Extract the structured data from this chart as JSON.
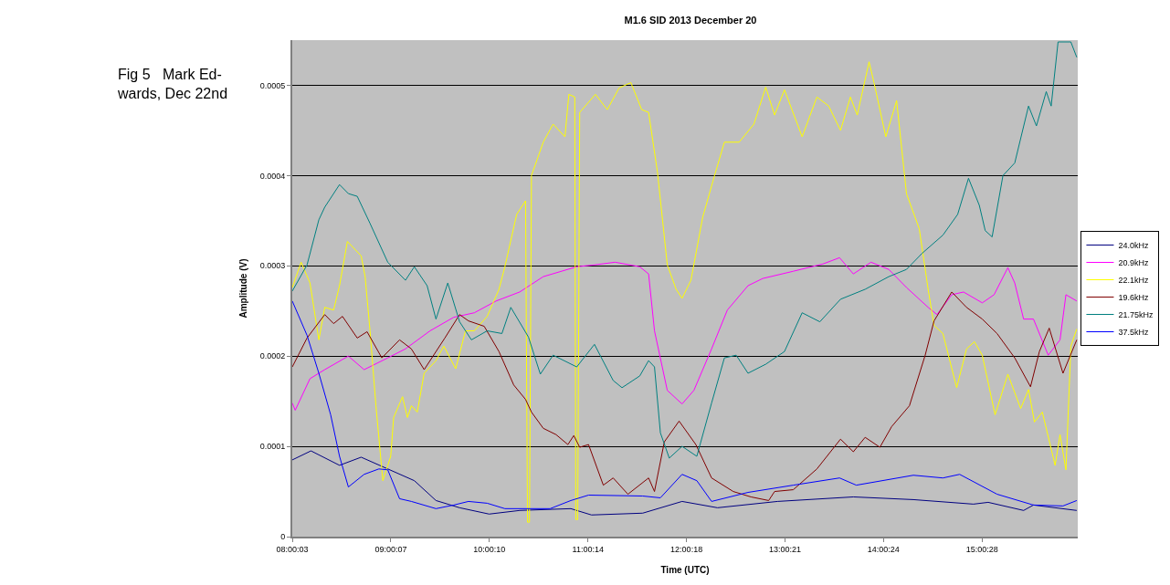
{
  "chart_data": {
    "type": "line",
    "title": "M1.6 SID 2013 December 20",
    "xlabel": "Time (UTC)",
    "ylabel": "Amplitude (V)",
    "annotations": [
      "Fig 5   Mark Ed-\nwards, Dec 22nd"
    ],
    "xlim": [
      8.0,
      15.98
    ],
    "ylim": [
      0,
      0.00055
    ],
    "xticks": [
      {
        "value": 8.0008,
        "label": "08:00:03"
      },
      {
        "value": 9.0019,
        "label": "09:00:07"
      },
      {
        "value": 10.0028,
        "label": "10:00:10"
      },
      {
        "value": 11.0039,
        "label": "11:00:14"
      },
      {
        "value": 12.005,
        "label": "12:00:18"
      },
      {
        "value": 13.0058,
        "label": "13:00:21"
      },
      {
        "value": 14.0067,
        "label": "14:00:24"
      },
      {
        "value": 15.0078,
        "label": "15:00:28"
      }
    ],
    "yticks": [
      0,
      0.0001,
      0.0002,
      0.0003,
      0.0004,
      0.0005
    ],
    "grid": "y",
    "legend": "right",
    "marker": "none",
    "line_style": "solid",
    "series": [
      {
        "name": "24.0kHz",
        "color": "#000080",
        "x": [
          8.0,
          8.19,
          8.48,
          8.7,
          8.97,
          9.24,
          9.46,
          9.7,
          10.0,
          10.31,
          10.83,
          11.04,
          11.56,
          11.96,
          12.32,
          12.93,
          13.7,
          14.31,
          14.92,
          15.07,
          15.43,
          15.53,
          15.97
        ],
        "values": [
          8.5e-05,
          9.5e-05,
          7.9e-05,
          8.8e-05,
          7.5e-05,
          6.2e-05,
          4e-05,
          3.2e-05,
          2.5e-05,
          2.9e-05,
          3.1e-05,
          2.4e-05,
          2.6e-05,
          3.9e-05,
          3.2e-05,
          3.9e-05,
          4.4e-05,
          4.1e-05,
          3.6e-05,
          3.8e-05,
          2.9e-05,
          3.5e-05,
          2.9e-05
        ]
      },
      {
        "name": "20.9kHz",
        "color": "#ff00ff",
        "x": [
          8.0,
          8.03,
          8.18,
          8.33,
          8.57,
          8.73,
          8.97,
          9.15,
          9.4,
          9.64,
          9.85,
          10.07,
          10.31,
          10.55,
          10.89,
          11.07,
          11.28,
          11.53,
          11.62,
          11.68,
          11.81,
          11.96,
          12.08,
          12.26,
          12.42,
          12.63,
          12.78,
          13.09,
          13.39,
          13.56,
          13.7,
          13.88,
          14.06,
          14.24,
          14.46,
          14.55,
          14.7,
          14.82,
          15.01,
          15.13,
          15.27,
          15.34,
          15.43,
          15.53,
          15.68,
          15.8,
          15.86,
          15.97
        ],
        "values": [
          0.000148,
          0.00014,
          0.000175,
          0.000185,
          0.0002,
          0.000185,
          0.000198,
          0.000208,
          0.000228,
          0.000243,
          0.000248,
          0.000261,
          0.000271,
          0.000288,
          0.000299,
          0.000301,
          0.000304,
          0.000299,
          0.000291,
          0.000228,
          0.000162,
          0.000147,
          0.000162,
          0.000208,
          0.000251,
          0.000278,
          0.000286,
          0.000294,
          0.000302,
          0.000309,
          0.000291,
          0.000304,
          0.000296,
          0.000276,
          0.000254,
          0.000246,
          0.000268,
          0.000271,
          0.000259,
          0.000268,
          0.000298,
          0.000281,
          0.000241,
          0.000241,
          0.000201,
          0.000218,
          0.000268,
          0.000261
        ]
      },
      {
        "name": "22.1kHz",
        "color": "#ffff00",
        "x": [
          8.0,
          8.09,
          8.18,
          8.27,
          8.33,
          8.42,
          8.48,
          8.56,
          8.7,
          8.74,
          8.79,
          8.85,
          8.92,
          9.0,
          9.03,
          9.12,
          9.17,
          9.21,
          9.27,
          9.34,
          9.46,
          9.54,
          9.66,
          9.76,
          9.85,
          9.98,
          10.1,
          10.16,
          10.28,
          10.37,
          10.39,
          10.41,
          10.43,
          10.55,
          10.65,
          10.77,
          10.81,
          10.87,
          10.88,
          10.9,
          10.92,
          11.08,
          11.2,
          11.32,
          11.44,
          11.55,
          11.62,
          11.71,
          11.81,
          11.9,
          11.96,
          12.05,
          12.17,
          12.29,
          12.39,
          12.54,
          12.69,
          12.81,
          12.9,
          13.0,
          13.18,
          13.33,
          13.45,
          13.57,
          13.67,
          13.74,
          13.86,
          13.91,
          14.03,
          14.14,
          14.24,
          14.37,
          14.46,
          14.52,
          14.61,
          14.75,
          14.85,
          14.93,
          15.01,
          15.14,
          15.27,
          15.4,
          15.48,
          15.54,
          15.62,
          15.75,
          15.8,
          15.86,
          15.91,
          15.97
        ],
        "values": [
          0.000276,
          0.000304,
          0.000281,
          0.000218,
          0.000254,
          0.000251,
          0.000278,
          0.000327,
          0.000311,
          0.000288,
          0.000228,
          0.000145,
          6.2e-05,
          8.9e-05,
          0.000132,
          0.000155,
          0.000132,
          0.000145,
          0.000138,
          0.000181,
          0.000195,
          0.000211,
          0.000186,
          0.000228,
          0.000228,
          0.000244,
          0.000274,
          0.000299,
          0.000357,
          0.000372,
          1.6e-05,
          1.6e-05,
          0.0004,
          0.000437,
          0.000457,
          0.000443,
          0.00049,
          0.000487,
          1.9e-05,
          1.9e-05,
          0.00047,
          0.00049,
          0.000473,
          0.000497,
          0.000503,
          0.000473,
          0.00047,
          0.000404,
          0.000301,
          0.000274,
          0.000264,
          0.000284,
          0.000354,
          0.0004,
          0.000437,
          0.000437,
          0.000457,
          0.000498,
          0.000467,
          0.000495,
          0.000443,
          0.000487,
          0.000477,
          0.00045,
          0.000487,
          0.000467,
          0.000526,
          0.000503,
          0.000443,
          0.000483,
          0.00038,
          0.000341,
          0.000274,
          0.000234,
          0.000225,
          0.000165,
          0.000208,
          0.000216,
          0.000201,
          0.000135,
          0.00018,
          0.000142,
          0.000163,
          0.000127,
          0.000138,
          7.9e-05,
          0.000113,
          7.4e-05,
          0.000211,
          0.00023
        ]
      },
      {
        "name": "19.6kHz",
        "color": "#800000",
        "x": [
          8.0,
          8.15,
          8.33,
          8.42,
          8.51,
          8.66,
          8.76,
          8.91,
          9.09,
          9.21,
          9.34,
          9.55,
          9.7,
          9.79,
          9.95,
          10.1,
          10.25,
          10.37,
          10.43,
          10.55,
          10.68,
          10.8,
          10.86,
          10.92,
          11.01,
          11.16,
          11.26,
          11.41,
          11.62,
          11.68,
          11.78,
          11.93,
          12.1,
          12.26,
          12.48,
          12.66,
          12.84,
          12.9,
          13.09,
          13.33,
          13.57,
          13.7,
          13.82,
          13.97,
          14.09,
          14.27,
          14.43,
          14.52,
          14.7,
          14.85,
          15.01,
          15.16,
          15.34,
          15.5,
          15.59,
          15.69,
          15.83,
          15.97
        ],
        "values": [
          0.000188,
          0.00022,
          0.000246,
          0.000236,
          0.000244,
          0.00022,
          0.000227,
          0.000198,
          0.000218,
          0.000208,
          0.000185,
          0.00022,
          0.000246,
          0.000239,
          0.000233,
          0.000205,
          0.000168,
          0.000152,
          0.000138,
          0.00012,
          0.000113,
          0.000102,
          0.000112,
          9.9e-05,
          0.000102,
          5.7e-05,
          6.5e-05,
          4.7e-05,
          6.5e-05,
          5e-05,
          0.000105,
          0.000128,
          0.000102,
          6.5e-05,
          5e-05,
          4.4e-05,
          4e-05,
          5e-05,
          5.2e-05,
          7.5e-05,
          0.000108,
          9.4e-05,
          0.00011,
          9.9e-05,
          0.000122,
          0.000145,
          0.000201,
          0.000239,
          0.000271,
          0.000254,
          0.000241,
          0.000225,
          0.000198,
          0.000166,
          0.000205,
          0.000231,
          0.000181,
          0.000218
        ]
      },
      {
        "name": "21.75kHz",
        "color": "#008080",
        "x": [
          8.0,
          8.15,
          8.27,
          8.33,
          8.48,
          8.57,
          8.66,
          8.79,
          8.97,
          9.15,
          9.24,
          9.37,
          9.46,
          9.58,
          9.7,
          9.82,
          9.98,
          10.13,
          10.22,
          10.4,
          10.52,
          10.65,
          10.89,
          11.07,
          11.26,
          11.35,
          11.53,
          11.62,
          11.68,
          11.74,
          11.83,
          11.96,
          12.11,
          12.26,
          12.39,
          12.51,
          12.63,
          12.81,
          13.0,
          13.18,
          13.36,
          13.57,
          13.82,
          14.06,
          14.24,
          14.4,
          14.61,
          14.76,
          14.87,
          14.98,
          15.04,
          15.11,
          15.22,
          15.34,
          15.48,
          15.56,
          15.66,
          15.71,
          15.78,
          15.91,
          15.97
        ],
        "values": [
          0.000272,
          0.000301,
          0.000351,
          0.000365,
          0.00039,
          0.00038,
          0.000377,
          0.000347,
          0.000304,
          0.000284,
          0.000299,
          0.000278,
          0.000241,
          0.000281,
          0.000238,
          0.000218,
          0.000228,
          0.000225,
          0.000254,
          0.000221,
          0.00018,
          0.000201,
          0.000188,
          0.000213,
          0.000173,
          0.000165,
          0.000178,
          0.000195,
          0.000188,
          0.000115,
          8.7e-05,
          0.0001,
          8.9e-05,
          0.000148,
          0.000198,
          0.000201,
          0.000181,
          0.000191,
          0.000205,
          0.000248,
          0.000238,
          0.000263,
          0.000274,
          0.000288,
          0.000296,
          0.000314,
          0.000334,
          0.000357,
          0.000397,
          0.000367,
          0.000339,
          0.000332,
          0.0004,
          0.000414,
          0.000477,
          0.000455,
          0.000493,
          0.000477,
          0.000548,
          0.000548,
          0.000531
        ]
      },
      {
        "name": "37.5kHz",
        "color": "#0000ff",
        "x": [
          8.0,
          8.15,
          8.27,
          8.39,
          8.48,
          8.57,
          8.73,
          8.88,
          8.97,
          9.09,
          9.21,
          9.46,
          9.64,
          9.79,
          9.98,
          10.16,
          10.62,
          10.83,
          11.01,
          11.56,
          11.74,
          11.96,
          12.11,
          12.26,
          12.63,
          13.09,
          13.56,
          13.73,
          14.31,
          14.61,
          14.78,
          15.16,
          15.53,
          15.83,
          15.97
        ],
        "values": [
          0.000261,
          0.000223,
          0.000181,
          0.000135,
          8.9e-05,
          5.5e-05,
          6.9e-05,
          7.5e-05,
          7.4e-05,
          4.2e-05,
          3.9e-05,
          3.1e-05,
          3.5e-05,
          3.9e-05,
          3.7e-05,
          3.1e-05,
          3.1e-05,
          4e-05,
          4.6e-05,
          4.5e-05,
          4.3e-05,
          6.9e-05,
          6.2e-05,
          3.9e-05,
          4.9e-05,
          5.7e-05,
          6.5e-05,
          5.7e-05,
          6.8e-05,
          6.5e-05,
          6.9e-05,
          4.7e-05,
          3.5e-05,
          3.4e-05,
          4e-05
        ]
      }
    ]
  }
}
